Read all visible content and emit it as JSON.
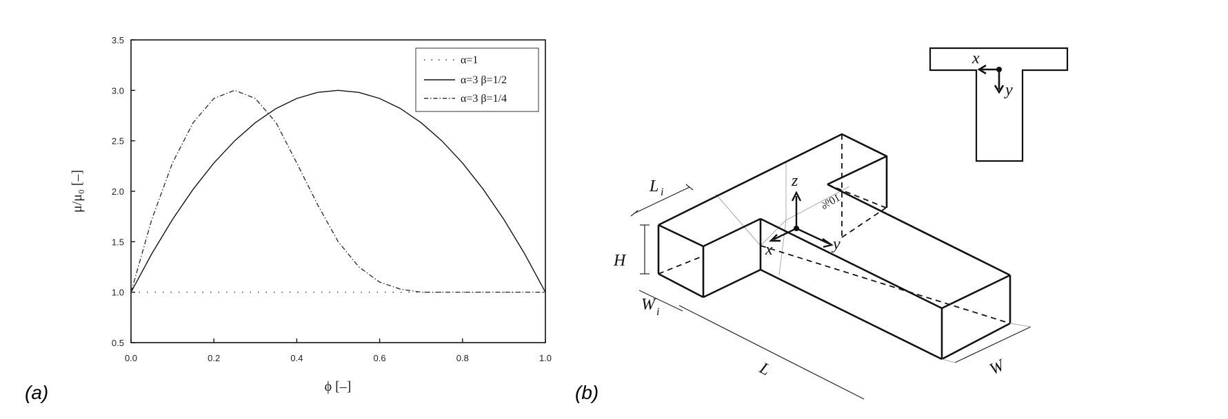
{
  "panels": {
    "a": "(a)",
    "b": "(b)"
  },
  "chart_data": {
    "type": "line",
    "xlabel": "ϕ [–]",
    "ylabel": "μ/μ₀ [–]",
    "xlim": [
      0,
      1.0
    ],
    "ylim": [
      0.5,
      3.5
    ],
    "xticks": [
      "0.0",
      "0.2",
      "0.4",
      "0.6",
      "0.8",
      "1.0"
    ],
    "yticks": [
      "0.5",
      "1.0",
      "1.5",
      "2.0",
      "2.5",
      "3.0",
      "3.5"
    ],
    "legend_position": "top-right",
    "series": [
      {
        "name": "α=1",
        "style": "dotted",
        "x": [
          0.0,
          0.2,
          0.4,
          0.6,
          0.8,
          1.0
        ],
        "y": [
          1.0,
          1.0,
          1.0,
          1.0,
          1.0,
          1.0
        ]
      },
      {
        "name": "α=3  β=1/2",
        "style": "solid",
        "x": [
          0.0,
          0.05,
          0.1,
          0.15,
          0.2,
          0.25,
          0.3,
          0.35,
          0.4,
          0.45,
          0.5,
          0.55,
          0.6,
          0.65,
          0.7,
          0.75,
          0.8,
          0.85,
          0.9,
          0.95,
          1.0
        ],
        "y": [
          1.0,
          1.38,
          1.72,
          2.02,
          2.28,
          2.5,
          2.68,
          2.82,
          2.92,
          2.98,
          3.0,
          2.98,
          2.92,
          2.82,
          2.68,
          2.5,
          2.28,
          2.02,
          1.72,
          1.38,
          1.0
        ]
      },
      {
        "name": "α=3  β=1/4",
        "style": "dashdot",
        "x": [
          0.0,
          0.05,
          0.1,
          0.15,
          0.2,
          0.25,
          0.3,
          0.35,
          0.4,
          0.45,
          0.5,
          0.55,
          0.6,
          0.65,
          0.7,
          0.75,
          0.8,
          0.9,
          1.0
        ],
        "y": [
          1.0,
          1.72,
          2.28,
          2.68,
          2.92,
          3.0,
          2.92,
          2.68,
          2.28,
          1.87,
          1.5,
          1.25,
          1.1,
          1.03,
          1.0,
          1.0,
          1.0,
          1.0,
          1.0
        ]
      }
    ]
  },
  "diagram": {
    "labels": {
      "L": "L",
      "W": "W",
      "H": "H",
      "Li": "L",
      "Li_sub": "i",
      "Wi": "W",
      "Wi_sub": "i",
      "x": "x",
      "y": "y",
      "z": "z",
      "rot": "10%"
    },
    "inset": {
      "x": "x",
      "y": "y"
    }
  }
}
